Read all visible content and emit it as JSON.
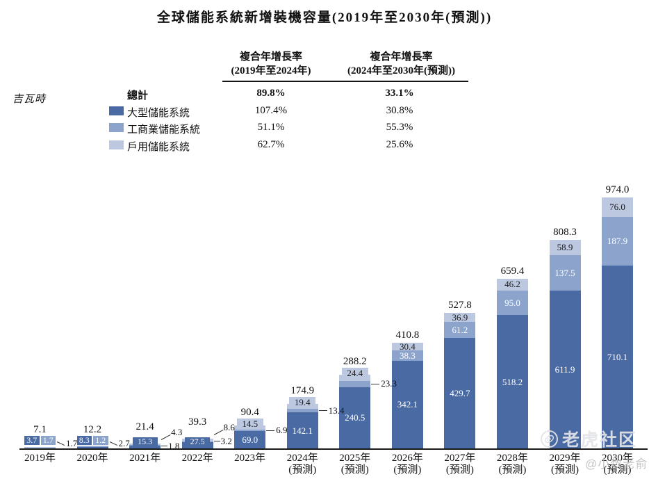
{
  "title": "全球儲能系統新增裝機容量(2019年至2030年(預測))",
  "unit_label": "吉瓦時",
  "cagr_table": {
    "col1_header_line1": "複合年增長率",
    "col1_header_line2": "(2019年至2024年)",
    "col2_header_line1": "複合年增長率",
    "col2_header_line2": "(2024年至2030年(預測))",
    "rows": [
      {
        "name": "總計",
        "bold": true,
        "swatch": null,
        "cagr_2019_2024": "89.8%",
        "cagr_2024_2030": "33.1%"
      },
      {
        "name": "大型儲能系統",
        "bold": false,
        "swatch": "#4a6aa4",
        "cagr_2019_2024": "107.4%",
        "cagr_2024_2030": "30.8%"
      },
      {
        "name": "工商業儲能系統",
        "bold": false,
        "swatch": "#8ca4cb",
        "cagr_2019_2024": "51.1%",
        "cagr_2024_2030": "55.3%"
      },
      {
        "name": "戶用儲能系統",
        "bold": false,
        "swatch": "#bcc8e0",
        "cagr_2019_2024": "62.7%",
        "cagr_2024_2030": "25.6%"
      }
    ]
  },
  "watermark": {
    "community": "老虎社区",
    "user": "@小数老俞"
  },
  "chart_data": {
    "type": "bar",
    "stacked": true,
    "title": "全球儲能系統新增裝機容量(2019年至2030年(預測))",
    "ylabel": "吉瓦時",
    "legend_position": "top-left",
    "grid": false,
    "categories": [
      "2019年",
      "2020年",
      "2021年",
      "2022年",
      "2023年",
      "2024年",
      "2025年",
      "2026年",
      "2027年",
      "2028年",
      "2029年",
      "2030年"
    ],
    "forecast_suffix": "(預測)",
    "forecast_from_index": 5,
    "series": [
      {
        "name": "大型儲能系統",
        "color": "#4a6aa4",
        "values": [
          3.7,
          8.3,
          15.3,
          27.5,
          69.0,
          142.1,
          240.5,
          342.1,
          429.7,
          518.2,
          611.9,
          710.1
        ]
      },
      {
        "name": "工商業儲能系統",
        "color": "#8ca4cb",
        "values": [
          1.7,
          1.2,
          1.8,
          3.2,
          6.9,
          13.4,
          23.3,
          38.3,
          61.2,
          95.0,
          137.5,
          187.9
        ]
      },
      {
        "name": "戶用儲能系統",
        "color": "#bcc8e0",
        "values": [
          1.7,
          2.7,
          4.3,
          8.6,
          14.5,
          19.4,
          24.4,
          30.4,
          36.9,
          46.2,
          58.9,
          76.0
        ]
      }
    ],
    "totals": [
      7.1,
      12.2,
      21.4,
      39.3,
      90.4,
      174.9,
      288.2,
      410.8,
      527.8,
      659.4,
      808.3,
      974.0
    ],
    "ylim": [
      0,
      1000
    ],
    "label_styles": [
      "chips",
      "chips",
      "smallbar",
      "smallbar",
      "mixed",
      "mixed",
      "mixed",
      "inside",
      "inside",
      "inside",
      "inside",
      "inside"
    ]
  }
}
